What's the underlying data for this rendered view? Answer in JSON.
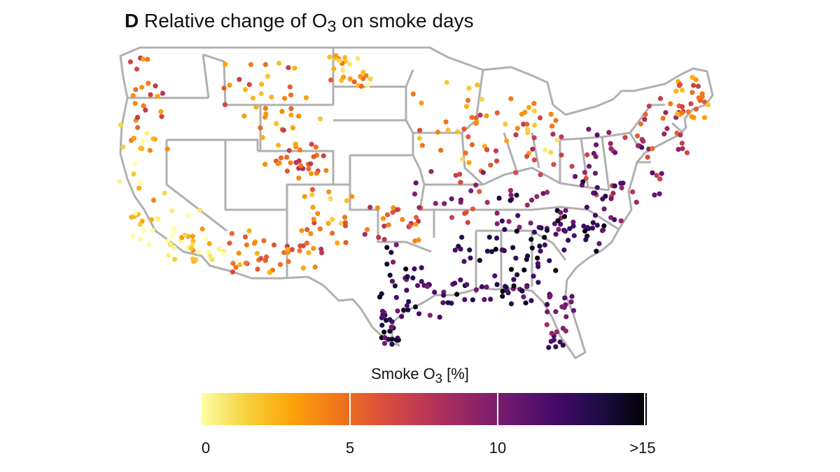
{
  "title": {
    "panel": "D",
    "text_before": "Relative change of O",
    "sub": "3",
    "text_after": " on smoke days"
  },
  "legend": {
    "title_before": "Smoke O",
    "title_sub": "3",
    "title_after": " [%]",
    "min": 0,
    "max": 15,
    "ticks": [
      {
        "value": 0,
        "label": "0"
      },
      {
        "value": 5,
        "label": "5"
      },
      {
        "value": 10,
        "label": "10"
      },
      {
        "value": 15,
        "label": ">15"
      }
    ],
    "colormap": "inferno (reversed)",
    "colors": [
      "#fcffa4",
      "#f7d13d",
      "#fca50a",
      "#f37819",
      "#dd513a",
      "#bc3754",
      "#932667",
      "#6a176e",
      "#420a68",
      "#1b0c41",
      "#000004"
    ]
  },
  "map": {
    "region": "contiguous United States",
    "borders": "state boundaries",
    "border_color": "#b0b0b0"
  }
}
